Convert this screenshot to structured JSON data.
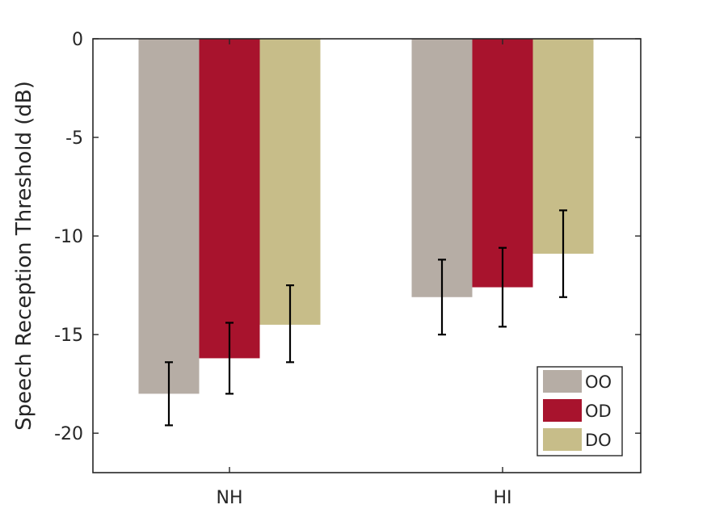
{
  "chart_data": {
    "type": "bar",
    "categories": [
      "NH",
      "HI"
    ],
    "series": [
      {
        "name": "OO",
        "values": [
          -18.0,
          -13.1
        ],
        "err_low": [
          -19.6,
          -15.0
        ],
        "err_high": [
          -16.4,
          -11.2
        ],
        "color": "#b6ada5"
      },
      {
        "name": "OD",
        "values": [
          -16.2,
          -12.6
        ],
        "err_low": [
          -18.0,
          -14.6
        ],
        "err_high": [
          -14.4,
          -10.6
        ],
        "color": "#a8132d"
      },
      {
        "name": "DO",
        "values": [
          -14.5,
          -10.9
        ],
        "err_low": [
          -16.4,
          -13.1
        ],
        "err_high": [
          -12.5,
          -8.7
        ],
        "color": "#c7bd89"
      }
    ],
    "ylabel": "Speech Reception Threshold (dB)",
    "xlabel": "",
    "ylim": [
      -22,
      0
    ],
    "yticks": [
      "0",
      "-5",
      "-10",
      "-15",
      "-20"
    ],
    "ytick_values": [
      0,
      -5,
      -10,
      -15,
      -20
    ],
    "legend_position": "bottom-right",
    "grid": false
  }
}
